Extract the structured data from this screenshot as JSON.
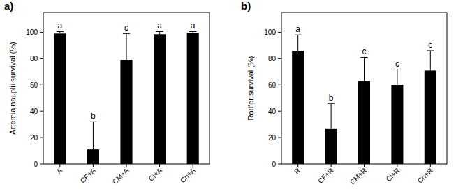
{
  "chart_data": [
    {
      "type": "bar",
      "title": "a)",
      "y_label": "Artemia nauplii survival (%)",
      "categories": [
        "A",
        "CF+A",
        "CM+A",
        "Ci+A",
        "Cn+A"
      ],
      "values": [
        99,
        11,
        79,
        98.5,
        99.5
      ],
      "errors": [
        1.5,
        21,
        20,
        2,
        1
      ],
      "annotations": [
        "a",
        "b",
        "c",
        "a",
        "a"
      ],
      "color": "#000000",
      "ylim": [
        0,
        115
      ],
      "yticks": [
        0,
        20,
        40,
        60,
        80,
        100
      ]
    },
    {
      "type": "bar",
      "title": "b)",
      "y_label": "Rotifer survival (%)",
      "categories": [
        "R",
        "CF+R",
        "CM+R",
        "Ci+R",
        "Cn+R"
      ],
      "values": [
        86,
        27,
        63,
        60,
        71
      ],
      "errors": [
        12,
        19,
        18,
        12,
        15
      ],
      "annotations": [
        "a",
        "b",
        "c",
        "c",
        "c"
      ],
      "color": "#000000",
      "ylim": [
        0,
        115
      ],
      "yticks": [
        0,
        20,
        40,
        60,
        80,
        100
      ]
    }
  ]
}
